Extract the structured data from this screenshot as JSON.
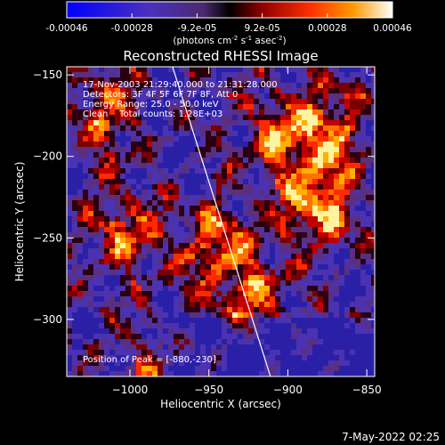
{
  "colorbar": {
    "ticks": [
      "-0.00046",
      "-0.00028",
      "-9.2e-05",
      "9.2e-05",
      "0.00028",
      "0.00046"
    ],
    "unit_main": "(photons cm",
    "unit_sup1": "-2",
    "unit_s": " s",
    "unit_sup2": "-1",
    "unit_asec": " asec",
    "unit_sup3": "-2",
    "unit_close": ")",
    "colors": [
      "#0000ff",
      "#3a2db0",
      "#6a3ab0",
      "#000000",
      "#8a0000",
      "#ff3000",
      "#ff9000",
      "#ffffff"
    ]
  },
  "chart_data": {
    "type": "heatmap",
    "title": "Reconstructed RHESSI Image",
    "xlabel": "Heliocentric X (arcsec)",
    "ylabel": "Heliocentric Y (arcsec)",
    "xlim": [
      -1040,
      -845
    ],
    "ylim": [
      -335,
      -145
    ],
    "x_ticks": [
      -1000,
      -950,
      -900,
      -850
    ],
    "x_tick_labels": [
      "−1000",
      "−950",
      "−900",
      "−850"
    ],
    "y_ticks": [
      -150,
      -200,
      -250,
      -300
    ],
    "y_tick_labels": [
      "−150",
      "−200",
      "−250",
      "−300"
    ],
    "limb_line": [
      [
        -973,
        -145
      ],
      [
        -911,
        -335
      ]
    ],
    "bright_regions": [
      {
        "x": -880,
        "y": -230,
        "level": 1.0
      },
      {
        "x": -905,
        "y": -185,
        "level": 0.8
      },
      {
        "x": -945,
        "y": -255,
        "level": 0.85
      },
      {
        "x": -1005,
        "y": -245,
        "level": 0.7
      },
      {
        "x": -1015,
        "y": -175,
        "level": 0.6
      },
      {
        "x": -920,
        "y": -290,
        "level": 0.6
      },
      {
        "x": -985,
        "y": -330,
        "level": 0.5
      },
      {
        "x": -870,
        "y": -180,
        "level": 0.6
      }
    ],
    "annotations": [
      "17-Nov-2003 21:29:40.000 to 21:31:28.000",
      "Detectors: 3F 4F 5F 6F 7F 8F, Att 0",
      "Energy Range: 25.0 - 50.0 keV",
      "Clean    Total counts: 1.28E+03"
    ],
    "peak_label": "Position of Peak = [-880,-230]"
  },
  "timestamp": "7-May-2022 02:25"
}
